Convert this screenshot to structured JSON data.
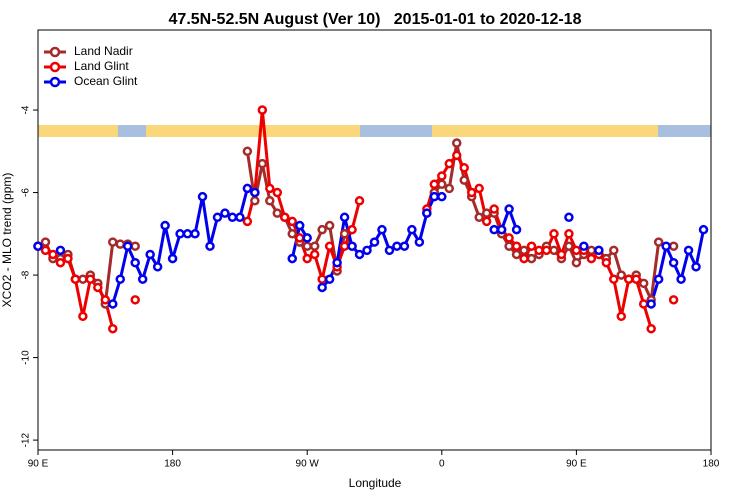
{
  "chart_data": {
    "type": "line",
    "title": "47.5N-52.5N August (Ver 10)   2015-01-01 to 2020-12-18",
    "xlabel": "Longitude",
    "ylabel": "XCO2 - MLO trend (ppm)",
    "x": [
      90,
      95,
      100,
      105,
      110,
      115,
      120,
      125,
      130,
      135,
      140,
      145,
      150,
      155,
      160,
      165,
      170,
      175,
      180,
      185,
      190,
      195,
      200,
      205,
      210,
      215,
      220,
      225,
      230,
      235,
      240,
      245,
      250,
      255,
      260,
      265,
      270,
      275,
      280,
      285,
      290,
      295,
      300,
      305,
      310,
      315,
      320,
      325,
      330,
      335,
      340,
      345,
      350,
      355,
      360,
      365,
      370,
      375,
      380,
      385,
      390,
      395,
      400,
      405,
      410,
      415,
      420,
      425,
      430,
      435,
      440,
      445,
      450,
      455,
      460,
      465,
      470,
      475,
      480,
      485,
      490,
      495,
      500,
      505,
      510,
      515,
      520,
      525,
      530,
      535,
      540
    ],
    "xlim": [
      90,
      540
    ],
    "xticks": [
      {
        "value": 90,
        "label": "90 E"
      },
      {
        "value": 180,
        "label": "180"
      },
      {
        "value": 270,
        "label": "90 W"
      },
      {
        "value": 360,
        "label": "0"
      },
      {
        "value": 450,
        "label": "90 E"
      },
      {
        "value": 540,
        "label": "180"
      }
    ],
    "ylim": [
      -12.24,
      -2.06
    ],
    "yticks": [
      -12,
      -10,
      -8,
      -6,
      -4
    ],
    "legend": "top-left",
    "series": [
      {
        "name": "Land Nadir",
        "color": "#a52a2a",
        "values": [
          -7.3,
          -7.2,
          -7.6,
          -7.6,
          -7.5,
          -8.1,
          -8.1,
          -8.0,
          -8.2,
          -8.7,
          -7.2,
          -7.25,
          -7.25,
          -7.3,
          null,
          null,
          null,
          null,
          null,
          null,
          null,
          null,
          null,
          null,
          null,
          null,
          null,
          null,
          -5.0,
          -6.2,
          -5.3,
          -6.2,
          -6.5,
          -6.6,
          -7.0,
          -7.2,
          -7.3,
          -7.3,
          -6.9,
          -6.8,
          -7.9,
          -7.0,
          -7.3,
          null,
          null,
          null,
          null,
          null,
          null,
          null,
          null,
          null,
          -6.5,
          -6.0,
          -5.8,
          -5.9,
          -4.8,
          -5.7,
          -6.1,
          -6.6,
          -6.5,
          -6.5,
          -7.0,
          -7.3,
          -7.5,
          -7.4,
          -7.6,
          -7.5,
          -7.3,
          -7.4,
          -7.6,
          -7.3,
          -7.7,
          -7.5,
          -7.4,
          -7.4,
          -7.6,
          -7.4,
          -8.0,
          -8.1,
          -8.0,
          -8.2,
          -8.6,
          -7.2,
          null,
          -7.3,
          null,
          null,
          null,
          null,
          null
        ]
      },
      {
        "name": "Land Glint",
        "color": "#ee0000",
        "values": [
          -7.3,
          -7.4,
          -7.5,
          -7.7,
          -7.6,
          -8.1,
          -9.0,
          -8.1,
          -8.3,
          -8.6,
          -9.3,
          null,
          null,
          -8.6,
          null,
          null,
          null,
          null,
          null,
          null,
          null,
          null,
          null,
          null,
          null,
          null,
          null,
          null,
          -6.7,
          -6.0,
          -4.0,
          -5.9,
          -6.0,
          -6.6,
          -6.7,
          -7.1,
          -7.6,
          -7.5,
          -8.1,
          -7.3,
          -7.8,
          -7.3,
          -6.9,
          -6.2,
          null,
          null,
          null,
          null,
          null,
          null,
          null,
          null,
          -6.4,
          -5.8,
          -5.6,
          -5.3,
          -5.1,
          -5.4,
          -6.0,
          -5.9,
          -6.7,
          -6.4,
          -6.9,
          -7.1,
          -7.3,
          -7.6,
          -7.3,
          -7.4,
          -7.4,
          -7.0,
          -7.5,
          -7.0,
          -7.4,
          -7.4,
          -7.6,
          -7.5,
          -7.7,
          -8.1,
          -9.0,
          -8.1,
          -8.1,
          -8.7,
          -9.3,
          null,
          null,
          -8.6,
          null,
          null,
          null,
          null,
          null
        ]
      },
      {
        "name": "Ocean Glint",
        "color": "#0000ee",
        "values": [
          -7.3,
          null,
          null,
          -7.4,
          null,
          null,
          null,
          null,
          null,
          null,
          -8.7,
          -8.1,
          -7.3,
          -7.7,
          -8.1,
          -7.5,
          -7.8,
          -6.8,
          -7.6,
          -7.0,
          -7.0,
          -7.0,
          -6.1,
          -7.3,
          -6.6,
          -6.5,
          -6.6,
          -6.6,
          -5.9,
          -6.0,
          null,
          null,
          null,
          null,
          -7.6,
          -6.8,
          -7.1,
          null,
          -8.3,
          -8.1,
          -7.7,
          -6.6,
          -7.3,
          -7.5,
          -7.4,
          -7.2,
          -6.9,
          -7.4,
          -7.3,
          -7.3,
          -6.9,
          -7.2,
          -6.5,
          -6.1,
          -6.1,
          null,
          null,
          null,
          null,
          null,
          null,
          -6.9,
          -6.9,
          -6.4,
          -6.9,
          null,
          null,
          null,
          null,
          null,
          null,
          -6.6,
          null,
          -7.3,
          null,
          -7.4,
          null,
          null,
          null,
          null,
          null,
          null,
          -8.7,
          -8.1,
          -7.3,
          -7.7,
          -8.1,
          -7.4,
          -7.8,
          -6.9,
          null
        ]
      }
    ]
  }
}
